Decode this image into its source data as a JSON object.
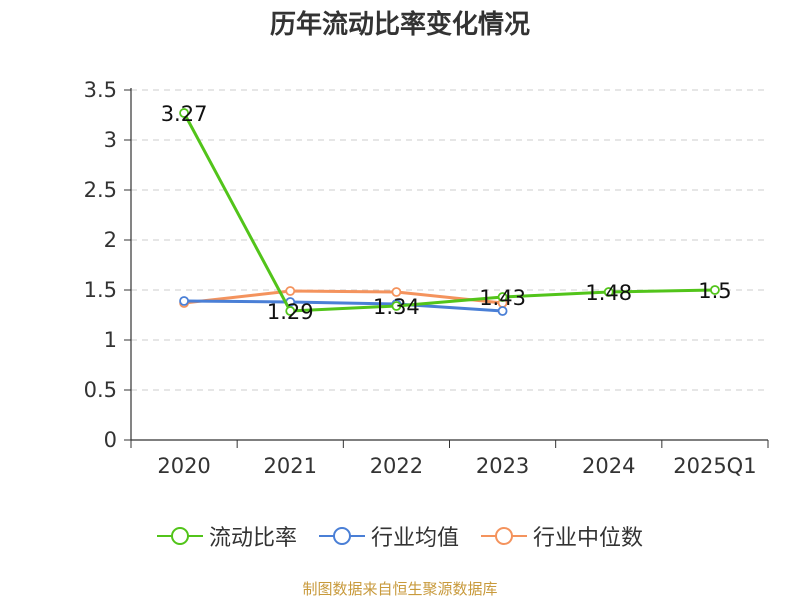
{
  "page": {
    "source_note": "制图数据来自恒生聚源数据库"
  },
  "chart_data": {
    "type": "line",
    "title": "历年流动比率变化情况",
    "categories": [
      "2020",
      "2021",
      "2022",
      "2023",
      "2024",
      "2025Q1"
    ],
    "ylim": [
      0,
      3.5
    ],
    "yticks": [
      "0",
      "0.5",
      "1",
      "1.5",
      "2",
      "2.5",
      "3",
      "3.5"
    ],
    "grid": true,
    "legend_position": "bottom",
    "series": [
      {
        "name": "流动比率",
        "color": "#52c41a",
        "values": [
          3.27,
          1.29,
          1.34,
          1.43,
          1.48,
          1.5
        ],
        "labels": [
          "3.27",
          "1.29",
          "1.34",
          "1.43",
          "1.48",
          "1.5"
        ],
        "show_labels": true
      },
      {
        "name": "行业均值",
        "color": "#4a7fd6",
        "values": [
          1.39,
          1.38,
          1.36,
          1.29,
          null,
          null
        ],
        "show_labels": false
      },
      {
        "name": "行业中位数",
        "color": "#f4935d",
        "values": [
          1.37,
          1.49,
          1.48,
          1.37,
          null,
          null
        ],
        "show_labels": false
      }
    ]
  }
}
